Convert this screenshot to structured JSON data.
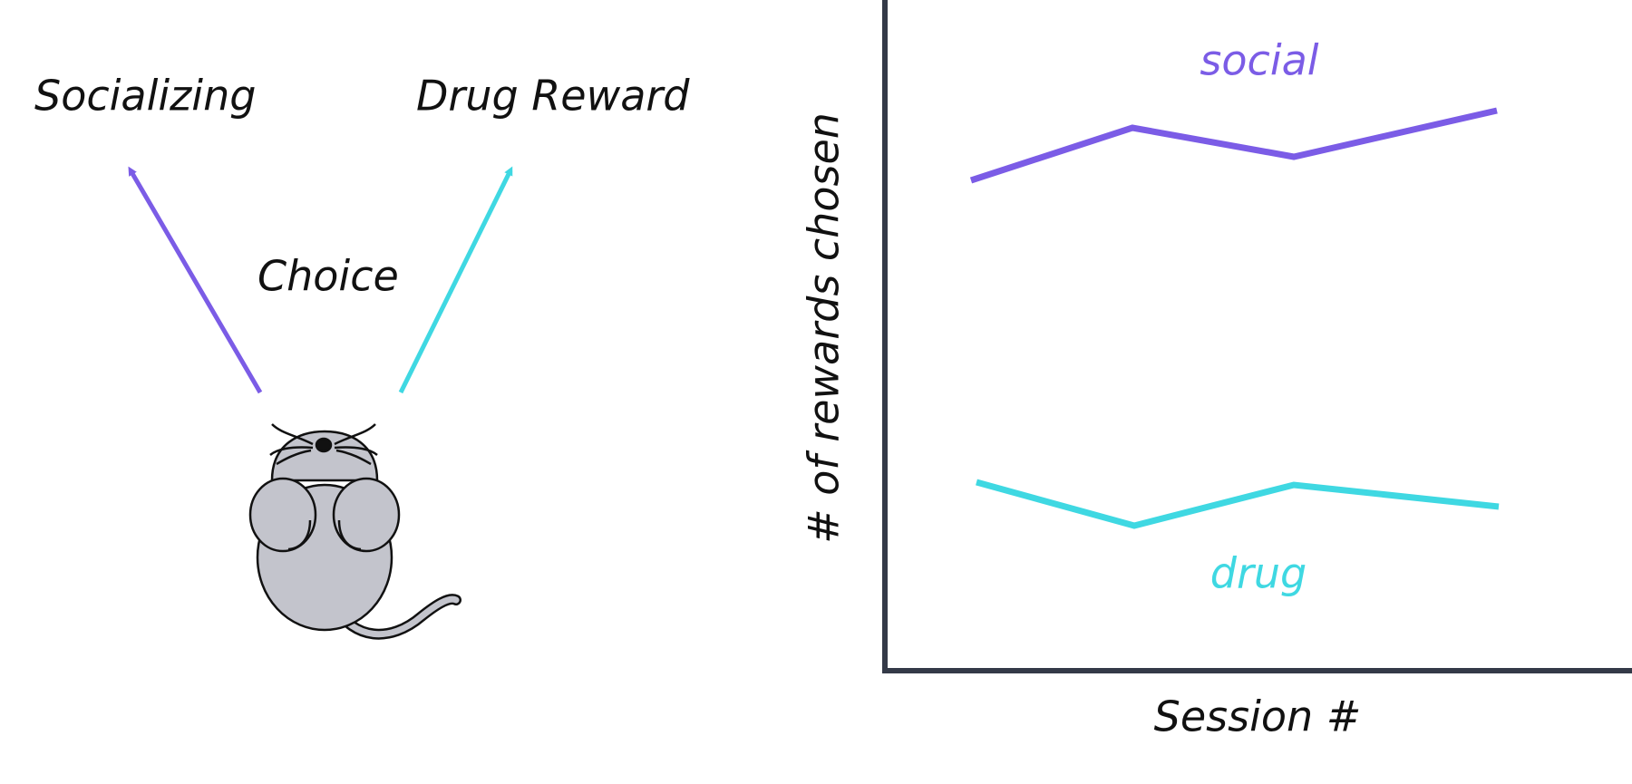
{
  "diagram": {
    "left": {
      "socializing": "Socializing",
      "drug_reward": "Drug Reward",
      "choice": "Choice"
    },
    "chart": {
      "y_label": "# of rewards chosen",
      "x_label": "Session #",
      "social": "social",
      "drug": "drug"
    }
  }
}
